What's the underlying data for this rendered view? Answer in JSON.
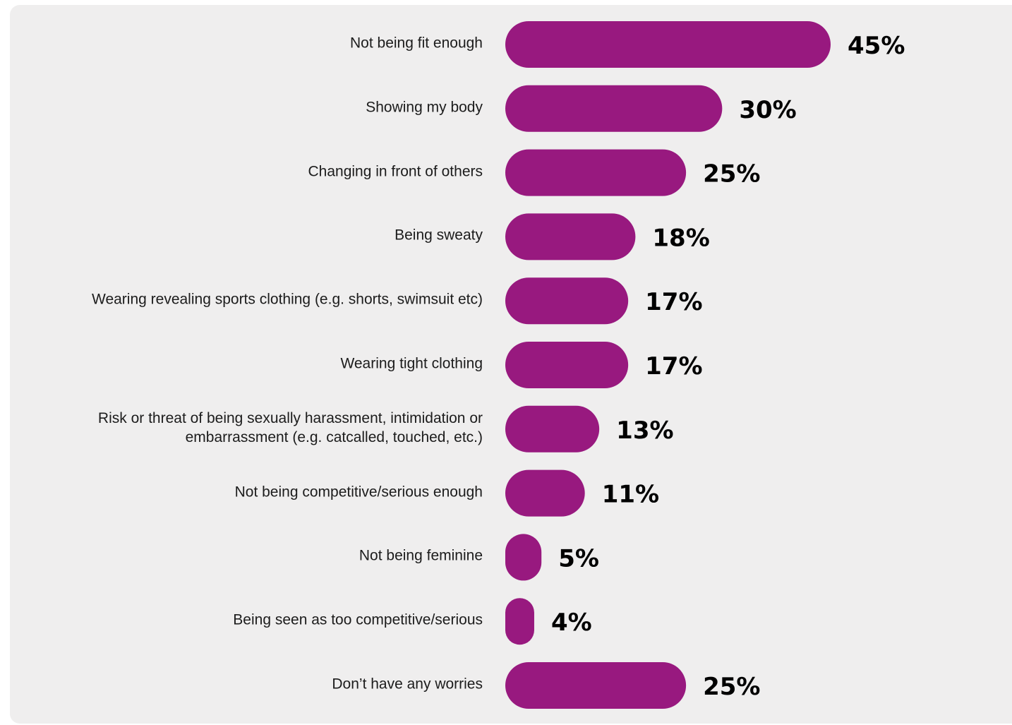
{
  "chart_data": {
    "type": "bar",
    "orientation": "horizontal",
    "title": "",
    "xlabel": "",
    "ylabel": "",
    "categories": [
      "Not being fit enough",
      "Showing my body",
      "Changing in front of others",
      "Being sweaty",
      "Wearing revealing sports clothing (e.g. shorts, swimsuit etc)",
      "Wearing tight clothing",
      "Risk or threat of being sexually harassment, intimidation or embarrassment (e.g. catcalled, touched, etc.)",
      "Not being competitive/serious enough",
      "Not being feminine",
      "Being seen as too competitive/serious",
      "Don’t have any worries"
    ],
    "values": [
      45,
      30,
      25,
      18,
      17,
      17,
      13,
      11,
      5,
      4,
      25
    ],
    "value_labels": [
      "45%",
      "30%",
      "25%",
      "18%",
      "17%",
      "17%",
      "13%",
      "11%",
      "5%",
      "4%",
      "25%"
    ],
    "unit": "%",
    "xlim": [
      0,
      45
    ],
    "grid": false,
    "legend": "none",
    "colors": {
      "bar": "#98197f",
      "background": "#efeeee",
      "label_text": "#1c1c1c",
      "value_text": "#000000"
    }
  }
}
